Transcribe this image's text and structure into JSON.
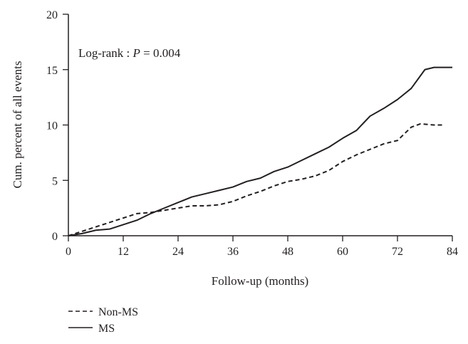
{
  "chart_data": {
    "type": "line",
    "title": "",
    "xlabel": "Follow-up (months)",
    "ylabel": "Cum. percent of all events",
    "xlim": [
      0,
      84
    ],
    "ylim": [
      0,
      20
    ],
    "xticks": [
      0,
      12,
      24,
      36,
      48,
      60,
      72,
      84
    ],
    "yticks": [
      0,
      5,
      10,
      15,
      20
    ],
    "grid": false,
    "legend_position": "bottom-left",
    "annotation": {
      "prefix": "Log-rank : ",
      "stat": "P",
      "suffix": " = 0.004"
    },
    "series": [
      {
        "name": "Non-MS",
        "style": "dashed",
        "color": "#231f20",
        "x": [
          0,
          3,
          6,
          9,
          12,
          15,
          18,
          21,
          24,
          27,
          30,
          33,
          36,
          39,
          42,
          45,
          48,
          51,
          54,
          57,
          60,
          63,
          66,
          69,
          72,
          75,
          77,
          80,
          82
        ],
        "y": [
          0,
          0.4,
          0.8,
          1.2,
          1.6,
          2.0,
          2.1,
          2.3,
          2.5,
          2.7,
          2.7,
          2.8,
          3.1,
          3.6,
          4.0,
          4.5,
          4.9,
          5.1,
          5.4,
          5.9,
          6.7,
          7.3,
          7.8,
          8.3,
          8.6,
          9.8,
          10.1,
          10.0,
          10.0
        ]
      },
      {
        "name": "MS",
        "style": "solid",
        "color": "#231f20",
        "x": [
          0,
          3,
          6,
          9,
          12,
          15,
          18,
          21,
          24,
          27,
          30,
          33,
          36,
          39,
          42,
          45,
          48,
          51,
          54,
          57,
          60,
          63,
          66,
          69,
          72,
          75,
          78,
          80,
          84
        ],
        "y": [
          0,
          0.2,
          0.5,
          0.6,
          1.0,
          1.4,
          2.0,
          2.5,
          3.0,
          3.5,
          3.8,
          4.1,
          4.4,
          4.9,
          5.2,
          5.8,
          6.2,
          6.8,
          7.4,
          8.0,
          8.8,
          9.5,
          10.8,
          11.5,
          12.3,
          13.3,
          15.0,
          15.2,
          15.2
        ]
      }
    ]
  }
}
